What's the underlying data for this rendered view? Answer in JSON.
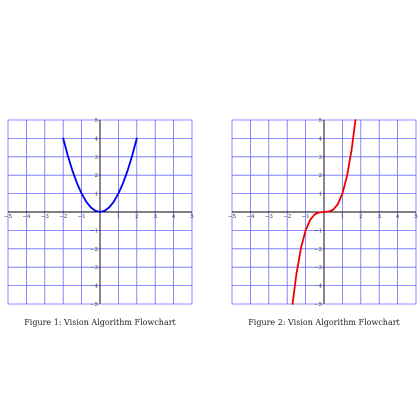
{
  "figures": [
    {
      "caption": "Figure 1: Vision Algorithm Flowchart"
    },
    {
      "caption": "Figure 2: Vision Algorithm Flowchart"
    }
  ],
  "chart_data": [
    {
      "type": "line",
      "title": "",
      "xlabel": "",
      "ylabel": "",
      "xlim": [
        -5,
        5
      ],
      "ylim": [
        -5,
        5
      ],
      "grid": true,
      "x_ticks": [
        -5,
        -4,
        -3,
        -2,
        -1,
        1,
        2,
        3,
        4,
        5
      ],
      "y_ticks": [
        -5,
        -4,
        -3,
        -2,
        -1,
        1,
        2,
        3,
        4,
        5
      ],
      "tick_labels_x": [
        "−5",
        "−4",
        "−3",
        "−2",
        "−1",
        "1",
        "2",
        "3",
        "4",
        "5"
      ],
      "tick_labels_y": [
        "−5",
        "−4",
        "−3",
        "−2",
        "−1",
        "1",
        "2",
        "3",
        "4",
        "5"
      ],
      "series": [
        {
          "color": "#0000ee",
          "x": [
            -2,
            -1.75,
            -1.5,
            -1.25,
            -1,
            -0.75,
            -0.5,
            -0.25,
            0,
            0.25,
            0.5,
            0.75,
            1,
            1.25,
            1.5,
            1.75,
            2
          ],
          "y": [
            4,
            3.0625,
            2.25,
            1.5625,
            1,
            0.5625,
            0.25,
            0.0625,
            0,
            0.0625,
            0.25,
            0.5625,
            1,
            1.5625,
            2.25,
            3.0625,
            4
          ]
        }
      ]
    },
    {
      "type": "line",
      "title": "",
      "xlabel": "",
      "ylabel": "",
      "xlim": [
        -5,
        5
      ],
      "ylim": [
        -5,
        5
      ],
      "grid": true,
      "x_ticks": [
        -5,
        -4,
        -3,
        -2,
        -1,
        1,
        2,
        3,
        4,
        5
      ],
      "y_ticks": [
        -5,
        -4,
        -3,
        -2,
        -1,
        1,
        2,
        3,
        4,
        5
      ],
      "tick_labels_x": [
        "−5",
        "−4",
        "−3",
        "−2",
        "−1",
        "1",
        "2",
        "3",
        "4",
        "5"
      ],
      "tick_labels_y": [
        "−5",
        "−4",
        "−3",
        "−2",
        "−1",
        "1",
        "2",
        "3",
        "4",
        "5"
      ],
      "series": [
        {
          "color": "#ee0000",
          "x": [
            -1.71,
            -1.5,
            -1.25,
            -1,
            -0.75,
            -0.5,
            -0.25,
            0,
            0.25,
            0.5,
            0.75,
            1,
            1.25,
            1.5,
            1.71
          ],
          "y": [
            -5,
            -3.375,
            -1.953,
            -1,
            -0.422,
            -0.125,
            -0.016,
            0,
            0.016,
            0.125,
            0.422,
            1,
            1.953,
            3.375,
            5
          ]
        }
      ]
    }
  ]
}
